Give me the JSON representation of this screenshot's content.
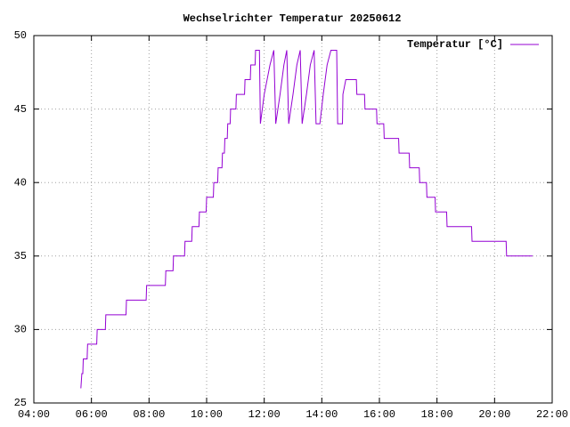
{
  "chart_data": {
    "type": "line",
    "title": "Wechselrichter Temperatur 20250612",
    "x": [
      "05:38",
      "05:40",
      "05:42",
      "05:43",
      "05:51",
      "05:52",
      "06:11",
      "06:12",
      "06:29",
      "06:30",
      "07:12",
      "07:13",
      "07:54",
      "07:55",
      "08:34",
      "08:35",
      "08:50",
      "08:51",
      "09:14",
      "09:15",
      "09:29",
      "09:30",
      "09:44",
      "09:45",
      "09:59",
      "10:00",
      "10:14",
      "10:15",
      "10:23",
      "10:24",
      "10:32",
      "10:33",
      "10:37",
      "10:38",
      "10:43",
      "10:44",
      "10:49",
      "10:50",
      "11:01",
      "11:02",
      "11:19",
      "11:20",
      "11:31",
      "11:32",
      "11:41",
      "11:42",
      "11:50",
      "11:52",
      "11:56",
      "12:00",
      "12:06",
      "12:12",
      "12:20",
      "12:24",
      "12:33",
      "12:41",
      "12:47",
      "12:51",
      "13:00",
      "13:08",
      "13:15",
      "13:19",
      "13:28",
      "13:36",
      "13:44",
      "13:48",
      "13:56",
      "14:03",
      "14:11",
      "14:19",
      "14:31",
      "14:33",
      "14:43",
      "14:44",
      "14:50",
      "15:12",
      "15:13",
      "15:29",
      "15:30",
      "15:54",
      "15:55",
      "16:09",
      "16:10",
      "16:40",
      "16:41",
      "17:02",
      "17:03",
      "17:23",
      "17:24",
      "17:38",
      "17:39",
      "17:56",
      "17:57",
      "18:20",
      "18:21",
      "19:12",
      "19:13",
      "20:24",
      "20:25",
      "21:19"
    ],
    "series": [
      {
        "name": "Temperatur [°C]",
        "color": "#9400d3",
        "values": [
          26,
          27,
          27,
          28,
          28,
          29,
          29,
          30,
          30,
          31,
          31,
          32,
          32,
          33,
          33,
          34,
          34,
          35,
          35,
          36,
          36,
          37,
          37,
          38,
          38,
          39,
          39,
          40,
          40,
          41,
          41,
          42,
          42,
          43,
          43,
          44,
          44,
          45,
          45,
          46,
          46,
          47,
          47,
          48,
          48,
          49,
          49,
          44,
          45,
          46,
          47,
          48,
          49,
          44,
          46,
          48,
          49,
          44,
          46,
          48,
          49,
          44,
          46,
          48,
          49,
          44,
          44,
          46,
          48,
          49,
          49,
          44,
          44,
          46,
          47,
          47,
          46,
          46,
          45,
          45,
          44,
          44,
          43,
          43,
          42,
          42,
          41,
          41,
          40,
          40,
          39,
          39,
          38,
          38,
          37,
          37,
          36,
          36,
          35,
          35
        ]
      }
    ],
    "xlim": [
      "04:00",
      "22:00"
    ],
    "xticks": [
      "04:00",
      "06:00",
      "08:00",
      "10:00",
      "12:00",
      "14:00",
      "16:00",
      "18:00",
      "20:00",
      "22:00"
    ],
    "ylim": [
      25,
      50
    ],
    "yticks": [
      25,
      30,
      35,
      40,
      45,
      50
    ],
    "grid": true,
    "legend": "top-right"
  }
}
